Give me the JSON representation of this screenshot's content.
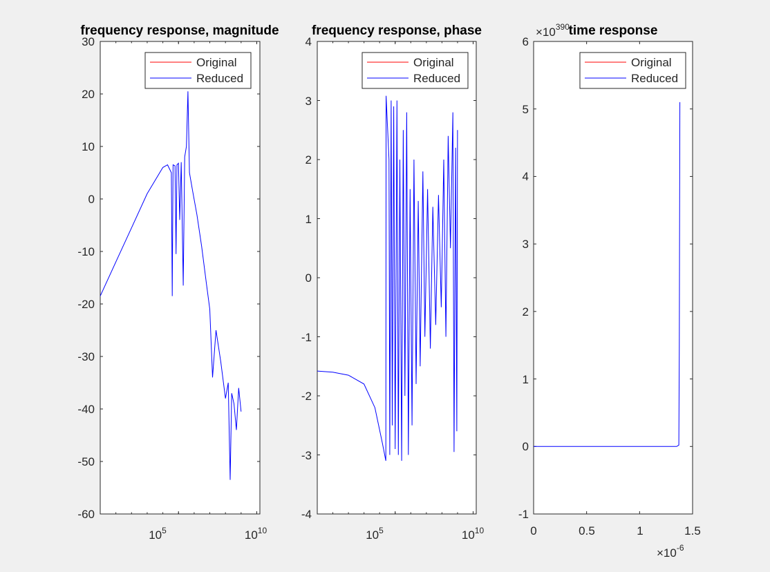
{
  "chart_data": [
    {
      "type": "line",
      "title": "frequency response, magnitude",
      "xscale": "log",
      "ylim": [
        -60,
        30
      ],
      "y_ticks": [
        "-60",
        "-50",
        "-40",
        "-30",
        "-20",
        "-10",
        "0",
        "10",
        "20",
        "30"
      ],
      "x_ticks": [
        {
          "base": "10",
          "exp": "5"
        },
        {
          "base": "10",
          "exp": "10"
        }
      ],
      "legend": {
        "placement": "top-right",
        "entries": [
          "Original",
          "Reduced"
        ]
      },
      "series": [
        {
          "name": "Original",
          "color": "#ff0000"
        },
        {
          "name": "Reduced",
          "color": "#0000ff",
          "points": [
            [
              1,
              -18.5
            ],
            [
              10,
              -12
            ],
            [
              100,
              -5.5
            ],
            [
              1000,
              1
            ],
            [
              10000,
              6
            ],
            [
              20000,
              6.5
            ],
            [
              35000,
              5
            ],
            [
              40000,
              -18.5
            ],
            [
              45000,
              6.5
            ],
            [
              60000,
              6.3
            ],
            [
              70000,
              -10.5
            ],
            [
              80000,
              6.5
            ],
            [
              100000,
              6.8
            ],
            [
              120000,
              -4
            ],
            [
              150000,
              7
            ],
            [
              200000,
              -16.5
            ],
            [
              250000,
              8
            ],
            [
              320000,
              10
            ],
            [
              400000,
              20.5
            ],
            [
              500000,
              5
            ],
            [
              800000,
              1.5
            ],
            [
              1500000,
              -3
            ],
            [
              3000000,
              -9
            ],
            [
              6000000,
              -16
            ],
            [
              10000000,
              -21
            ],
            [
              15000000,
              -34
            ],
            [
              25000000,
              -25
            ],
            [
              50000000,
              -31
            ],
            [
              100000000,
              -38
            ],
            [
              150000000,
              -35
            ],
            [
              200000000,
              -53.5
            ],
            [
              250000000,
              -37
            ],
            [
              350000000,
              -39
            ],
            [
              500000000,
              -44
            ],
            [
              700000000,
              -36
            ],
            [
              1000000000,
              -40.5
            ]
          ]
        }
      ]
    },
    {
      "type": "line",
      "title": "frequency response, phase",
      "xscale": "log",
      "ylim": [
        -4,
        4
      ],
      "y_ticks": [
        "-4",
        "-3",
        "-2",
        "-1",
        "0",
        "1",
        "2",
        "3",
        "4"
      ],
      "x_ticks": [
        {
          "base": "10",
          "exp": "5"
        },
        {
          "base": "10",
          "exp": "10"
        }
      ],
      "legend": {
        "placement": "top-right",
        "entries": [
          "Original",
          "Reduced"
        ]
      },
      "series": [
        {
          "name": "Original",
          "color": "#ff0000"
        },
        {
          "name": "Reduced",
          "color": "#0000ff",
          "points": [
            [
              1,
              -1.58
            ],
            [
              10,
              -1.6
            ],
            [
              100,
              -1.65
            ],
            [
              1000,
              -1.8
            ],
            [
              5000,
              -2.2
            ],
            [
              15000,
              -2.8
            ],
            [
              25000,
              -3.1
            ],
            [
              26000,
              3.08
            ],
            [
              40000,
              2.0
            ],
            [
              45000,
              -3.0
            ],
            [
              55000,
              3.0
            ],
            [
              65000,
              -2.5
            ],
            [
              80000,
              2.9
            ],
            [
              100000,
              -2.9
            ],
            [
              130000,
              3.0
            ],
            [
              160000,
              -3.0
            ],
            [
              200000,
              2.0
            ],
            [
              260000,
              -3.1
            ],
            [
              330000,
              2.5
            ],
            [
              420000,
              -2.0
            ],
            [
              550000,
              2.8
            ],
            [
              700000,
              -3.0
            ],
            [
              900000,
              1.5
            ],
            [
              1200000,
              -2.5
            ],
            [
              1600000,
              2.0
            ],
            [
              2200000,
              -1.8
            ],
            [
              3000000,
              1.3
            ],
            [
              4000000,
              -1.5
            ],
            [
              6000000,
              1.8
            ],
            [
              8000000,
              -1.0
            ],
            [
              12000000,
              1.5
            ],
            [
              18000000,
              -1.2
            ],
            [
              26000000,
              1.2
            ],
            [
              40000000,
              -0.8
            ],
            [
              60000000,
              1.4
            ],
            [
              90000000,
              -0.5
            ],
            [
              130000000,
              2.0
            ],
            [
              180000000,
              -1.0
            ],
            [
              250000000,
              2.4
            ],
            [
              350000000,
              0.5
            ],
            [
              500000000,
              2.8
            ],
            [
              600000000,
              -2.95
            ],
            [
              750000000,
              2.2
            ],
            [
              900000000,
              -2.6
            ],
            [
              1000000000,
              2.5
            ]
          ]
        }
      ]
    },
    {
      "type": "line",
      "title": "time response",
      "xlim": [
        0,
        1.5
      ],
      "ylim": [
        -1,
        6
      ],
      "y_ticks": [
        "-1",
        "0",
        "1",
        "2",
        "3",
        "4",
        "5",
        "6"
      ],
      "x_ticks": [
        "0",
        "0.5",
        "1",
        "1.5"
      ],
      "y_exponent": {
        "base": "×10",
        "exp": "390"
      },
      "x_exponent": {
        "base": "×10",
        "exp": "-6"
      },
      "legend": {
        "placement": "top-right",
        "entries": [
          "Original",
          "Reduced"
        ]
      },
      "series": [
        {
          "name": "Original",
          "color": "#ff0000"
        },
        {
          "name": "Reduced",
          "color": "#0000ff",
          "points": [
            [
              0,
              0
            ],
            [
              1.0,
              0
            ],
            [
              1.35,
              0
            ],
            [
              1.37,
              0.02
            ],
            [
              1.375,
              1.5
            ],
            [
              1.38,
              5.1
            ]
          ]
        }
      ]
    }
  ]
}
